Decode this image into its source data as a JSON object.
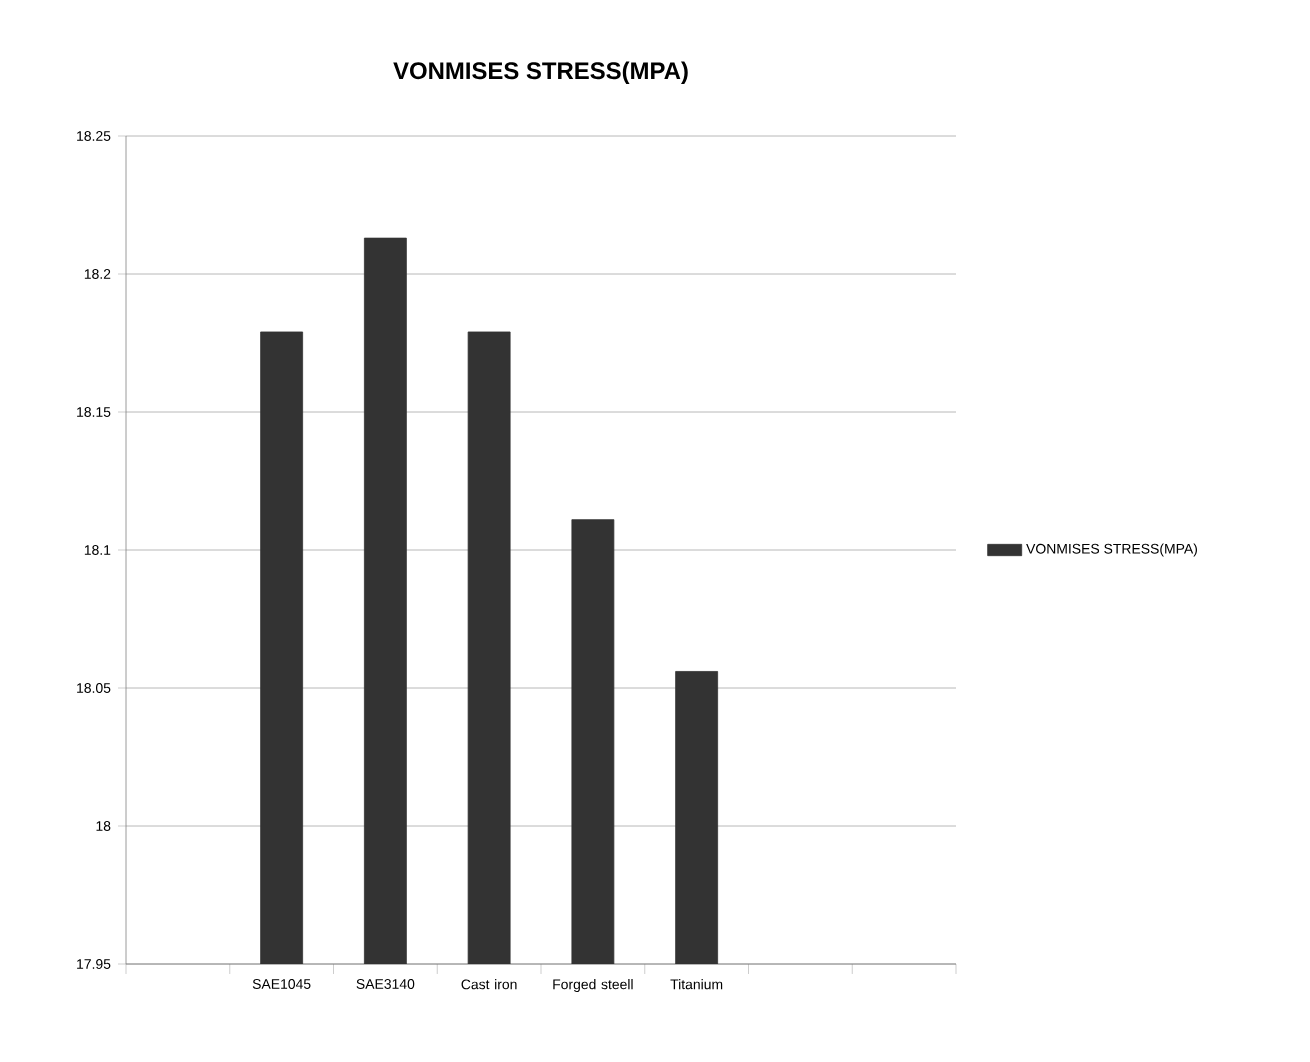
{
  "chart_data": {
    "type": "bar",
    "title": "VONMISES STRESS(MPA)",
    "categories": [
      null,
      "SAE1045",
      "SAE3140",
      "Cast iron",
      "Forged steell",
      "Titanium",
      null,
      null
    ],
    "series": [
      {
        "name": "VONMISES STRESS(MPA)",
        "color": "#333333",
        "values": [
          null,
          18.179,
          18.213,
          18.179,
          18.111,
          18.056,
          null,
          null
        ]
      }
    ],
    "ylim": [
      17.95,
      18.25
    ],
    "yticks": [
      17.95,
      18,
      18.05,
      18.1,
      18.15,
      18.2,
      18.25
    ],
    "grid": "y",
    "legend": "right"
  }
}
